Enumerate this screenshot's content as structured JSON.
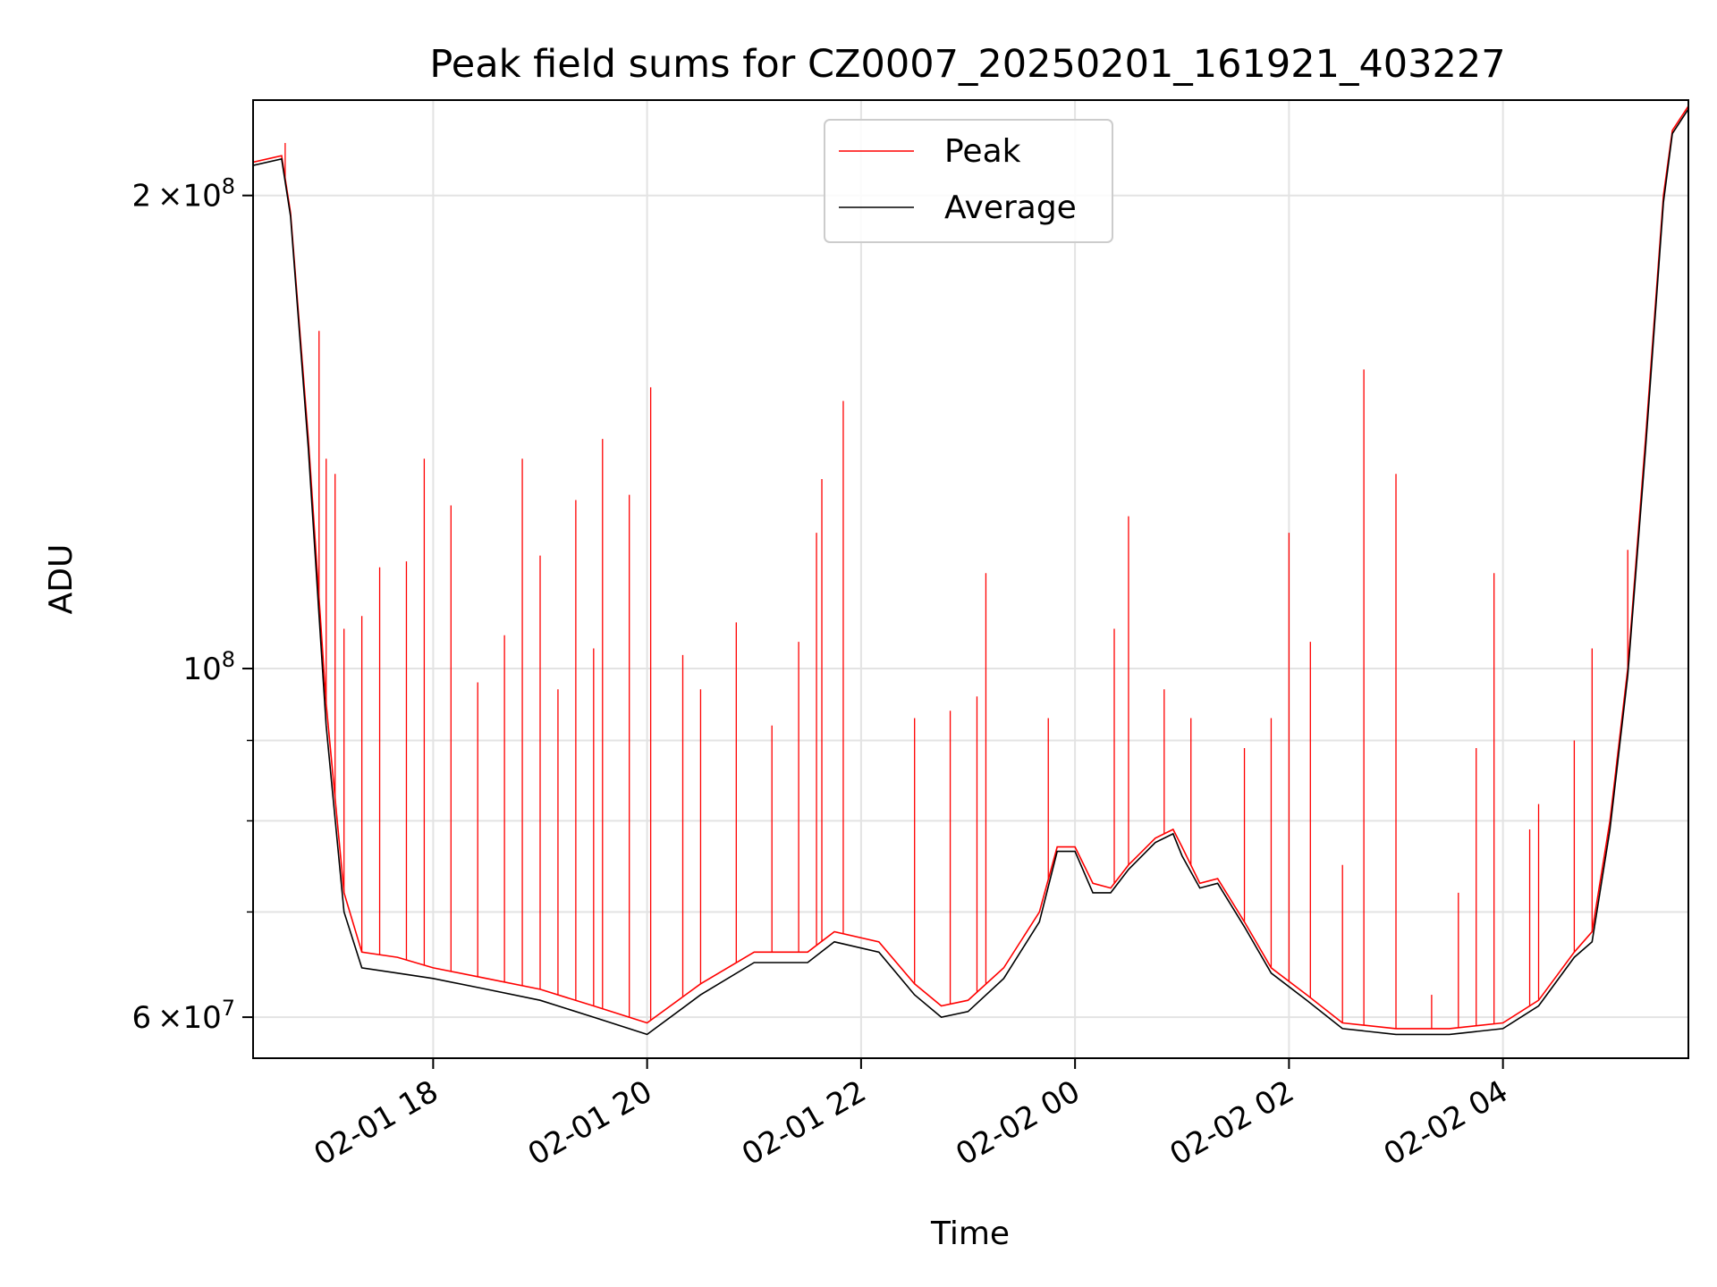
{
  "chart_data": {
    "type": "line",
    "title": "Peak field sums for CZ0007_20250201_161921_403227",
    "xlabel": "Time",
    "ylabel": "ADU",
    "yscale": "log",
    "ylim": [
      56500000,
      230000000
    ],
    "xlim": [
      "2025-02-01 16:19",
      "2025-02-02 05:44"
    ],
    "grid": true,
    "legend_position": "top-center",
    "x_ticks": [
      {
        "t": "2025-02-01 18:00",
        "label": "02-01 18"
      },
      {
        "t": "2025-02-01 20:00",
        "label": "02-01 20"
      },
      {
        "t": "2025-02-01 22:00",
        "label": "02-01 22"
      },
      {
        "t": "2025-02-02 00:00",
        "label": "02-02 00"
      },
      {
        "t": "2025-02-02 02:00",
        "label": "02-02 02"
      },
      {
        "t": "2025-02-02 04:00",
        "label": "02-02 04"
      }
    ],
    "y_ticks_major": [
      {
        "value": 60000000,
        "mantissa": "6",
        "base": "×10",
        "exp": "7"
      },
      {
        "value": 100000000,
        "mantissa": "",
        "base": "10",
        "exp": "8"
      },
      {
        "value": 200000000,
        "mantissa": "2",
        "base": "×10",
        "exp": "8"
      }
    ],
    "y_ticks_minor": [
      70000000,
      80000000,
      90000000
    ],
    "series": [
      {
        "name": "Peak",
        "color": "#ff0000",
        "baseline": [
          [
            "2025-02-01 16:19",
            210000000
          ],
          [
            "2025-02-01 16:35",
            212000000
          ],
          [
            "2025-02-01 16:40",
            195000000
          ],
          [
            "2025-02-01 16:50",
            140000000
          ],
          [
            "2025-02-01 17:00",
            95000000
          ],
          [
            "2025-02-01 17:10",
            72000000
          ],
          [
            "2025-02-01 17:20",
            66000000
          ],
          [
            "2025-02-01 17:40",
            65500000
          ],
          [
            "2025-02-01 18:00",
            64500000
          ],
          [
            "2025-02-01 18:30",
            63500000
          ],
          [
            "2025-02-01 19:00",
            62500000
          ],
          [
            "2025-02-01 19:30",
            61000000
          ],
          [
            "2025-02-01 20:00",
            59500000
          ],
          [
            "2025-02-01 20:30",
            63000000
          ],
          [
            "2025-02-01 21:00",
            66000000
          ],
          [
            "2025-02-01 21:30",
            66000000
          ],
          [
            "2025-02-01 21:45",
            68000000
          ],
          [
            "2025-02-01 22:10",
            67000000
          ],
          [
            "2025-02-01 22:30",
            63000000
          ],
          [
            "2025-02-01 22:45",
            61000000
          ],
          [
            "2025-02-01 23:00",
            61500000
          ],
          [
            "2025-02-01 23:20",
            64500000
          ],
          [
            "2025-02-01 23:40",
            70000000
          ],
          [
            "2025-02-01 23:50",
            77000000
          ],
          [
            "2025-02-02 00:00",
            77000000
          ],
          [
            "2025-02-02 00:10",
            73000000
          ],
          [
            "2025-02-02 00:20",
            72500000
          ],
          [
            "2025-02-02 00:30",
            75000000
          ],
          [
            "2025-02-02 00:45",
            78000000
          ],
          [
            "2025-02-02 00:55",
            79000000
          ],
          [
            "2025-02-02 01:00",
            77000000
          ],
          [
            "2025-02-02 01:10",
            73000000
          ],
          [
            "2025-02-02 01:20",
            73500000
          ],
          [
            "2025-02-02 01:35",
            69000000
          ],
          [
            "2025-02-02 01:50",
            64500000
          ],
          [
            "2025-02-02 02:10",
            62000000
          ],
          [
            "2025-02-02 02:30",
            59500000
          ],
          [
            "2025-02-02 03:00",
            59000000
          ],
          [
            "2025-02-02 03:30",
            59000000
          ],
          [
            "2025-02-02 04:00",
            59500000
          ],
          [
            "2025-02-02 04:20",
            61500000
          ],
          [
            "2025-02-02 04:40",
            66000000
          ],
          [
            "2025-02-02 04:50",
            68000000
          ],
          [
            "2025-02-02 05:00",
            80000000
          ],
          [
            "2025-02-02 05:10",
            100000000
          ],
          [
            "2025-02-02 05:20",
            140000000
          ],
          [
            "2025-02-02 05:30",
            200000000
          ],
          [
            "2025-02-02 05:35",
            220000000
          ],
          [
            "2025-02-02 05:44",
            228000000
          ]
        ],
        "spikes": [
          [
            "2025-02-01 16:37",
            216000000
          ],
          [
            "2025-02-01 16:56",
            164000000
          ],
          [
            "2025-02-01 17:00",
            136000000
          ],
          [
            "2025-02-01 17:05",
            133000000
          ],
          [
            "2025-02-01 17:10",
            106000000
          ],
          [
            "2025-02-01 17:20",
            108000000
          ],
          [
            "2025-02-01 17:30",
            116000000
          ],
          [
            "2025-02-01 17:45",
            117000000
          ],
          [
            "2025-02-01 17:55",
            136000000
          ],
          [
            "2025-02-01 18:10",
            127000000
          ],
          [
            "2025-02-01 18:25",
            98000000
          ],
          [
            "2025-02-01 18:40",
            105000000
          ],
          [
            "2025-02-01 18:50",
            136000000
          ],
          [
            "2025-02-01 19:00",
            118000000
          ],
          [
            "2025-02-01 19:10",
            97000000
          ],
          [
            "2025-02-01 19:20",
            128000000
          ],
          [
            "2025-02-01 19:30",
            103000000
          ],
          [
            "2025-02-01 19:35",
            140000000
          ],
          [
            "2025-02-01 19:50",
            129000000
          ],
          [
            "2025-02-01 20:02",
            151000000
          ],
          [
            "2025-02-01 20:20",
            102000000
          ],
          [
            "2025-02-01 20:30",
            97000000
          ],
          [
            "2025-02-01 20:50",
            107000000
          ],
          [
            "2025-02-01 21:10",
            92000000
          ],
          [
            "2025-02-01 21:25",
            104000000
          ],
          [
            "2025-02-01 21:35",
            122000000
          ],
          [
            "2025-02-01 21:38",
            132000000
          ],
          [
            "2025-02-01 21:50",
            148000000
          ],
          [
            "2025-02-01 22:30",
            93000000
          ],
          [
            "2025-02-01 22:50",
            94000000
          ],
          [
            "2025-02-01 23:05",
            96000000
          ],
          [
            "2025-02-01 23:10",
            115000000
          ],
          [
            "2025-02-01 23:45",
            93000000
          ],
          [
            "2025-02-02 00:22",
            106000000
          ],
          [
            "2025-02-02 00:30",
            125000000
          ],
          [
            "2025-02-02 00:50",
            97000000
          ],
          [
            "2025-02-02 01:05",
            93000000
          ],
          [
            "2025-02-02 01:35",
            89000000
          ],
          [
            "2025-02-02 01:50",
            93000000
          ],
          [
            "2025-02-02 02:00",
            122000000
          ],
          [
            "2025-02-02 02:12",
            104000000
          ],
          [
            "2025-02-02 02:30",
            75000000
          ],
          [
            "2025-02-02 02:42",
            155000000
          ],
          [
            "2025-02-02 03:00",
            133000000
          ],
          [
            "2025-02-02 03:20",
            62000000
          ],
          [
            "2025-02-02 03:35",
            72000000
          ],
          [
            "2025-02-02 03:45",
            89000000
          ],
          [
            "2025-02-02 03:55",
            115000000
          ],
          [
            "2025-02-02 04:15",
            79000000
          ],
          [
            "2025-02-02 04:20",
            82000000
          ],
          [
            "2025-02-02 04:40",
            90000000
          ],
          [
            "2025-02-02 04:50",
            103000000
          ],
          [
            "2025-02-02 05:10",
            119000000
          ]
        ]
      },
      {
        "name": "Average",
        "color": "#000000",
        "baseline": [
          [
            "2025-02-01 16:19",
            209000000
          ],
          [
            "2025-02-01 16:35",
            211000000
          ],
          [
            "2025-02-01 16:40",
            194000000
          ],
          [
            "2025-02-01 16:50",
            138000000
          ],
          [
            "2025-02-01 17:00",
            92000000
          ],
          [
            "2025-02-01 17:10",
            70000000
          ],
          [
            "2025-02-01 17:20",
            64500000
          ],
          [
            "2025-02-01 17:40",
            64000000
          ],
          [
            "2025-02-01 18:00",
            63500000
          ],
          [
            "2025-02-01 18:30",
            62500000
          ],
          [
            "2025-02-01 19:00",
            61500000
          ],
          [
            "2025-02-01 19:30",
            60000000
          ],
          [
            "2025-02-01 20:00",
            58500000
          ],
          [
            "2025-02-01 20:30",
            62000000
          ],
          [
            "2025-02-01 21:00",
            65000000
          ],
          [
            "2025-02-01 21:30",
            65000000
          ],
          [
            "2025-02-01 21:45",
            67000000
          ],
          [
            "2025-02-01 22:10",
            66000000
          ],
          [
            "2025-02-01 22:30",
            62000000
          ],
          [
            "2025-02-01 22:45",
            60000000
          ],
          [
            "2025-02-01 23:00",
            60500000
          ],
          [
            "2025-02-01 23:20",
            63500000
          ],
          [
            "2025-02-01 23:40",
            69000000
          ],
          [
            "2025-02-01 23:50",
            76500000
          ],
          [
            "2025-02-02 00:00",
            76500000
          ],
          [
            "2025-02-02 00:10",
            72000000
          ],
          [
            "2025-02-02 00:20",
            72000000
          ],
          [
            "2025-02-02 00:30",
            74500000
          ],
          [
            "2025-02-02 00:45",
            77500000
          ],
          [
            "2025-02-02 00:55",
            78500000
          ],
          [
            "2025-02-02 01:00",
            76000000
          ],
          [
            "2025-02-02 01:10",
            72500000
          ],
          [
            "2025-02-02 01:20",
            73000000
          ],
          [
            "2025-02-02 01:35",
            68500000
          ],
          [
            "2025-02-02 01:50",
            64000000
          ],
          [
            "2025-02-02 02:10",
            61500000
          ],
          [
            "2025-02-02 02:30",
            59000000
          ],
          [
            "2025-02-02 03:00",
            58500000
          ],
          [
            "2025-02-02 03:30",
            58500000
          ],
          [
            "2025-02-02 04:00",
            59000000
          ],
          [
            "2025-02-02 04:20",
            61000000
          ],
          [
            "2025-02-02 04:40",
            65500000
          ],
          [
            "2025-02-02 04:50",
            67000000
          ],
          [
            "2025-02-02 05:00",
            79000000
          ],
          [
            "2025-02-02 05:10",
            99000000
          ],
          [
            "2025-02-02 05:20",
            138000000
          ],
          [
            "2025-02-02 05:30",
            198000000
          ],
          [
            "2025-02-02 05:35",
            219000000
          ],
          [
            "2025-02-02 05:44",
            227000000
          ]
        ]
      }
    ]
  }
}
